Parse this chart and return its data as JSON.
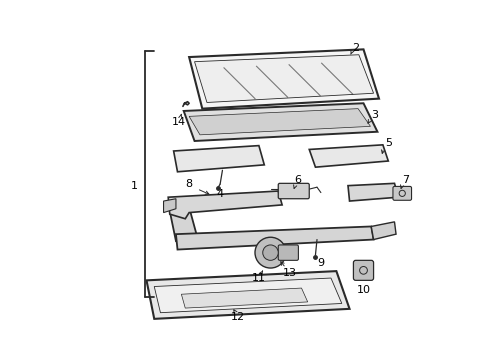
{
  "bg_color": "#ffffff",
  "line_color": "#2a2a2a",
  "text_color": "#000000",
  "lw_thick": 1.4,
  "lw_thin": 0.8,
  "label_fs": 8
}
